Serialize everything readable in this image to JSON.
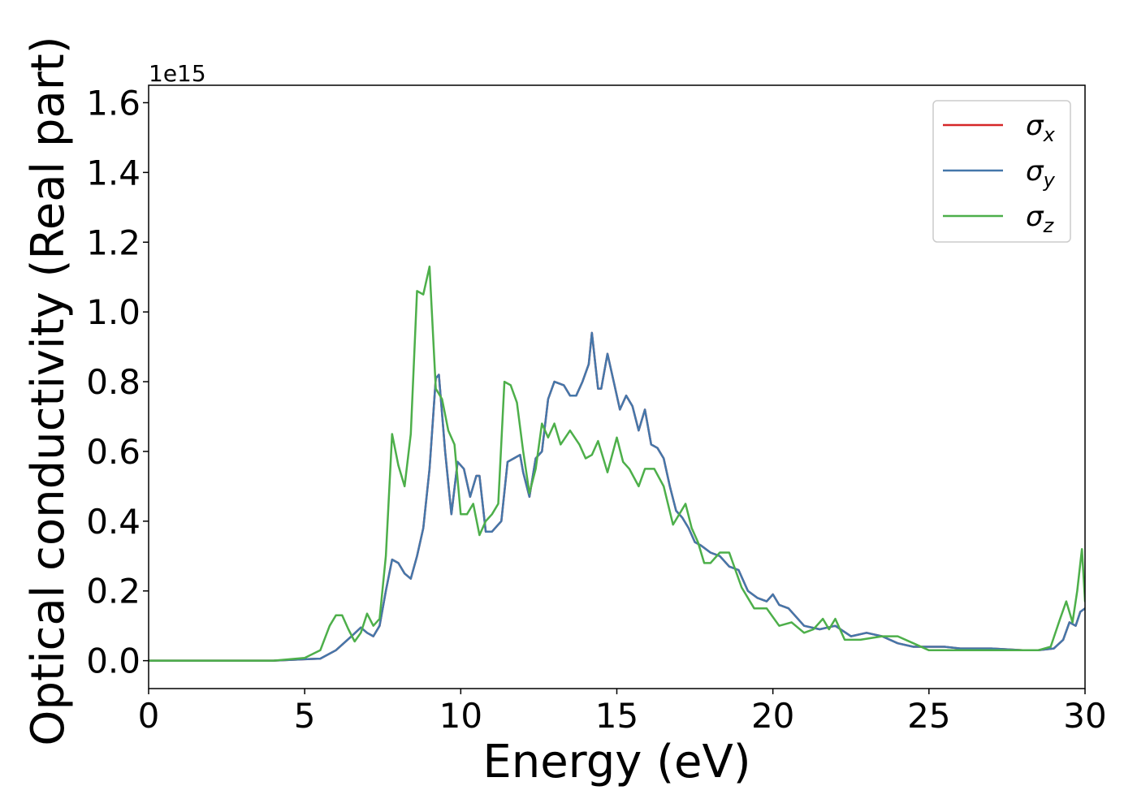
{
  "chart_data": {
    "type": "line",
    "xlabel": "Energy (eV)",
    "ylabel": "Optical conductivity (Real part)",
    "y_offset_text": "1e15",
    "xlim": [
      0,
      30
    ],
    "ylim": [
      -0.08,
      1.65
    ],
    "y_scale_multiplier": 1000000000000000.0,
    "x_ticks": [
      0,
      5,
      10,
      15,
      20,
      25,
      30
    ],
    "x_tick_labels": [
      "0",
      "5",
      "10",
      "15",
      "20",
      "25",
      "30"
    ],
    "y_ticks": [
      0.0,
      0.2,
      0.4,
      0.6,
      0.8,
      1.0,
      1.2,
      1.4,
      1.6
    ],
    "y_tick_labels": [
      "0.0",
      "0.2",
      "0.4",
      "0.6",
      "0.8",
      "1.0",
      "1.2",
      "1.4",
      "1.6"
    ],
    "grid": false,
    "legend_position": "top-right",
    "series": [
      {
        "name": "σx",
        "symbol": "σ",
        "subscript": "x",
        "color": "#d62728",
        "x": [
          0,
          4,
          5,
          5.5,
          6,
          6.5,
          6.8,
          7.0,
          7.2,
          7.4,
          7.6,
          7.8,
          8.0,
          8.2,
          8.4,
          8.6,
          8.8,
          9.0,
          9.2,
          9.3,
          9.5,
          9.7,
          9.9,
          10.1,
          10.3,
          10.5,
          10.6,
          10.8,
          11.0,
          11.3,
          11.5,
          11.7,
          11.9,
          12.0,
          12.2,
          12.4,
          12.6,
          12.8,
          13.0,
          13.3,
          13.5,
          13.7,
          13.9,
          14.1,
          14.2,
          14.4,
          14.5,
          14.7,
          14.9,
          15.1,
          15.3,
          15.5,
          15.7,
          15.9,
          16.1,
          16.3,
          16.5,
          16.7,
          16.9,
          17.1,
          17.3,
          17.5,
          17.7,
          18.0,
          18.3,
          18.6,
          18.9,
          19.2,
          19.5,
          19.8,
          20.0,
          20.2,
          20.5,
          20.8,
          21.0,
          21.5,
          22.0,
          22.5,
          23.0,
          23.5,
          24.0,
          24.5,
          25.0,
          25.5,
          26.0,
          27.0,
          28.0,
          28.5,
          29.0,
          29.3,
          29.5,
          29.7,
          29.85,
          30.0
        ],
        "y": [
          0,
          0,
          0.004,
          0.006,
          0.03,
          0.07,
          0.095,
          0.08,
          0.07,
          0.1,
          0.2,
          0.29,
          0.28,
          0.25,
          0.235,
          0.3,
          0.38,
          0.55,
          0.81,
          0.82,
          0.6,
          0.42,
          0.57,
          0.55,
          0.47,
          0.53,
          0.53,
          0.37,
          0.37,
          0.4,
          0.57,
          0.58,
          0.59,
          0.54,
          0.47,
          0.58,
          0.6,
          0.75,
          0.8,
          0.79,
          0.76,
          0.76,
          0.8,
          0.85,
          0.94,
          0.78,
          0.78,
          0.88,
          0.8,
          0.72,
          0.76,
          0.73,
          0.66,
          0.72,
          0.62,
          0.61,
          0.58,
          0.5,
          0.43,
          0.41,
          0.38,
          0.34,
          0.33,
          0.31,
          0.3,
          0.27,
          0.26,
          0.2,
          0.18,
          0.17,
          0.19,
          0.16,
          0.15,
          0.12,
          0.1,
          0.09,
          0.1,
          0.07,
          0.08,
          0.07,
          0.05,
          0.04,
          0.04,
          0.04,
          0.035,
          0.035,
          0.03,
          0.03,
          0.035,
          0.06,
          0.11,
          0.1,
          0.14,
          0.15
        ]
      },
      {
        "name": "σy",
        "symbol": "σ",
        "subscript": "y",
        "color": "#4477aa",
        "x": [
          0,
          4,
          5,
          5.5,
          6,
          6.5,
          6.8,
          7.0,
          7.2,
          7.4,
          7.6,
          7.8,
          8.0,
          8.2,
          8.4,
          8.6,
          8.8,
          9.0,
          9.2,
          9.3,
          9.5,
          9.7,
          9.9,
          10.1,
          10.3,
          10.5,
          10.6,
          10.8,
          11.0,
          11.3,
          11.5,
          11.7,
          11.9,
          12.0,
          12.2,
          12.4,
          12.6,
          12.8,
          13.0,
          13.3,
          13.5,
          13.7,
          13.9,
          14.1,
          14.2,
          14.4,
          14.5,
          14.7,
          14.9,
          15.1,
          15.3,
          15.5,
          15.7,
          15.9,
          16.1,
          16.3,
          16.5,
          16.7,
          16.9,
          17.1,
          17.3,
          17.5,
          17.7,
          18.0,
          18.3,
          18.6,
          18.9,
          19.2,
          19.5,
          19.8,
          20.0,
          20.2,
          20.5,
          20.8,
          21.0,
          21.5,
          22.0,
          22.5,
          23.0,
          23.5,
          24.0,
          24.5,
          25.0,
          25.5,
          26.0,
          27.0,
          28.0,
          28.5,
          29.0,
          29.3,
          29.5,
          29.7,
          29.85,
          30.0
        ],
        "y": [
          0,
          0,
          0.004,
          0.006,
          0.03,
          0.07,
          0.095,
          0.08,
          0.07,
          0.1,
          0.2,
          0.29,
          0.28,
          0.25,
          0.235,
          0.3,
          0.38,
          0.55,
          0.81,
          0.82,
          0.6,
          0.42,
          0.57,
          0.55,
          0.47,
          0.53,
          0.53,
          0.37,
          0.37,
          0.4,
          0.57,
          0.58,
          0.59,
          0.54,
          0.47,
          0.58,
          0.6,
          0.75,
          0.8,
          0.79,
          0.76,
          0.76,
          0.8,
          0.85,
          0.94,
          0.78,
          0.78,
          0.88,
          0.8,
          0.72,
          0.76,
          0.73,
          0.66,
          0.72,
          0.62,
          0.61,
          0.58,
          0.5,
          0.43,
          0.41,
          0.38,
          0.34,
          0.33,
          0.31,
          0.3,
          0.27,
          0.26,
          0.2,
          0.18,
          0.17,
          0.19,
          0.16,
          0.15,
          0.12,
          0.1,
          0.09,
          0.1,
          0.07,
          0.08,
          0.07,
          0.05,
          0.04,
          0.04,
          0.04,
          0.035,
          0.035,
          0.03,
          0.03,
          0.035,
          0.06,
          0.11,
          0.1,
          0.14,
          0.15
        ]
      },
      {
        "name": "σz",
        "symbol": "σ",
        "subscript": "z",
        "color": "#4daf4a",
        "x": [
          0,
          4,
          5,
          5.5,
          5.8,
          6.0,
          6.2,
          6.4,
          6.6,
          6.8,
          7.0,
          7.2,
          7.4,
          7.6,
          7.8,
          8.0,
          8.2,
          8.4,
          8.6,
          8.8,
          9.0,
          9.2,
          9.4,
          9.6,
          9.8,
          10.0,
          10.2,
          10.4,
          10.6,
          10.8,
          11.0,
          11.2,
          11.4,
          11.6,
          11.8,
          12.0,
          12.2,
          12.4,
          12.6,
          12.8,
          13.0,
          13.2,
          13.5,
          13.8,
          14.0,
          14.2,
          14.4,
          14.7,
          15.0,
          15.2,
          15.4,
          15.7,
          15.9,
          16.2,
          16.5,
          16.8,
          17.0,
          17.2,
          17.4,
          17.6,
          17.8,
          18.0,
          18.3,
          18.6,
          19.0,
          19.4,
          19.8,
          20.2,
          20.6,
          21.0,
          21.3,
          21.6,
          21.8,
          22.0,
          22.3,
          22.8,
          23.5,
          24.0,
          24.5,
          25.0,
          26.0,
          27.0,
          28.0,
          28.5,
          28.9,
          29.2,
          29.4,
          29.6,
          29.75,
          29.9,
          30.0
        ],
        "y": [
          0,
          0,
          0.008,
          0.03,
          0.1,
          0.13,
          0.13,
          0.09,
          0.055,
          0.08,
          0.135,
          0.1,
          0.12,
          0.3,
          0.65,
          0.56,
          0.5,
          0.65,
          1.06,
          1.05,
          1.13,
          0.78,
          0.75,
          0.66,
          0.62,
          0.42,
          0.42,
          0.45,
          0.36,
          0.4,
          0.42,
          0.45,
          0.8,
          0.79,
          0.74,
          0.6,
          0.48,
          0.55,
          0.68,
          0.64,
          0.68,
          0.62,
          0.66,
          0.62,
          0.58,
          0.59,
          0.63,
          0.54,
          0.64,
          0.57,
          0.55,
          0.5,
          0.55,
          0.55,
          0.5,
          0.39,
          0.42,
          0.45,
          0.38,
          0.34,
          0.28,
          0.28,
          0.31,
          0.31,
          0.21,
          0.15,
          0.15,
          0.1,
          0.11,
          0.08,
          0.09,
          0.12,
          0.09,
          0.12,
          0.06,
          0.06,
          0.07,
          0.07,
          0.05,
          0.03,
          0.03,
          0.03,
          0.03,
          0.03,
          0.04,
          0.12,
          0.17,
          0.11,
          0.2,
          0.32,
          0.17
        ]
      }
    ]
  }
}
